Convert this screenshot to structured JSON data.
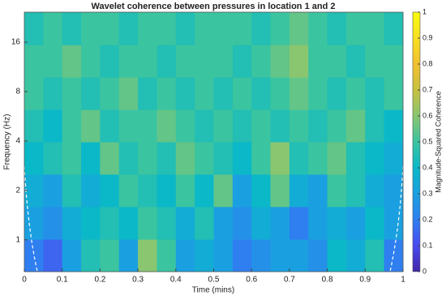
{
  "chart_data": {
    "type": "heatmap",
    "title": "Wavelet coherence between pressures in location 1 and 2",
    "x_label": "Time (mins)",
    "y_label": "Frequency (Hz)",
    "colorbar_label": "Magnitude-Squared Coherence",
    "x": [
      0.025,
      0.075,
      0.125,
      0.175,
      0.225,
      0.275,
      0.325,
      0.375,
      0.425,
      0.475,
      0.525,
      0.575,
      0.625,
      0.675,
      0.725,
      0.775,
      0.825,
      0.875,
      0.925,
      0.975
    ],
    "y": [
      0.8,
      1.27,
      2.0,
      3.15,
      4.96,
      7.8,
      12.3,
      19.4
    ],
    "z": [
      [
        0.2,
        0.15,
        0.3,
        0.45,
        0.5,
        0.3,
        0.6,
        0.5,
        0.3,
        0.35,
        0.3,
        0.2,
        0.25,
        0.3,
        0.3,
        0.25,
        0.4,
        0.35,
        0.45,
        0.2
      ],
      [
        0.3,
        0.25,
        0.35,
        0.4,
        0.45,
        0.4,
        0.5,
        0.45,
        0.35,
        0.45,
        0.3,
        0.25,
        0.35,
        0.3,
        0.2,
        0.3,
        0.35,
        0.3,
        0.4,
        0.3
      ],
      [
        0.35,
        0.3,
        0.45,
        0.35,
        0.4,
        0.5,
        0.45,
        0.4,
        0.5,
        0.4,
        0.55,
        0.3,
        0.4,
        0.55,
        0.35,
        0.3,
        0.5,
        0.45,
        0.35,
        0.3
      ],
      [
        0.4,
        0.45,
        0.5,
        0.4,
        0.55,
        0.45,
        0.5,
        0.45,
        0.55,
        0.5,
        0.45,
        0.4,
        0.5,
        0.6,
        0.45,
        0.5,
        0.55,
        0.45,
        0.4,
        0.35
      ],
      [
        0.45,
        0.4,
        0.5,
        0.55,
        0.45,
        0.5,
        0.5,
        0.55,
        0.5,
        0.45,
        0.5,
        0.45,
        0.5,
        0.45,
        0.5,
        0.45,
        0.5,
        0.55,
        0.45,
        0.4
      ],
      [
        0.5,
        0.45,
        0.5,
        0.45,
        0.5,
        0.55,
        0.45,
        0.5,
        0.45,
        0.5,
        0.45,
        0.5,
        0.45,
        0.5,
        0.55,
        0.5,
        0.45,
        0.5,
        0.45,
        0.5
      ],
      [
        0.5,
        0.5,
        0.55,
        0.5,
        0.45,
        0.5,
        0.5,
        0.45,
        0.5,
        0.5,
        0.5,
        0.45,
        0.5,
        0.55,
        0.6,
        0.5,
        0.5,
        0.45,
        0.5,
        0.5
      ],
      [
        0.45,
        0.5,
        0.45,
        0.5,
        0.5,
        0.45,
        0.5,
        0.5,
        0.45,
        0.5,
        0.5,
        0.5,
        0.45,
        0.5,
        0.55,
        0.5,
        0.45,
        0.5,
        0.5,
        0.45
      ]
    ],
    "xlim": [
      0,
      1
    ],
    "xticks": [
      0,
      0.1,
      0.2,
      0.3,
      0.4,
      0.5,
      0.6,
      0.7,
      0.8,
      0.9,
      1
    ],
    "ylim": [
      0.64,
      24.4
    ],
    "yticks": [
      1,
      2,
      4,
      8,
      16
    ],
    "y_scale": "log",
    "clim": [
      0,
      1
    ],
    "cticks": [
      0,
      0.1,
      0.2,
      0.3,
      0.4,
      0.5,
      0.6,
      0.7,
      0.8,
      0.9,
      1
    ],
    "colormap": [
      "#3e26a8",
      "#4a4af0",
      "#2f7ff0",
      "#1aa0e0",
      "#0bb8c8",
      "#3bc4a0",
      "#8ac670",
      "#c7c140",
      "#f2c030",
      "#f6e020",
      "#f9fb0e"
    ]
  }
}
